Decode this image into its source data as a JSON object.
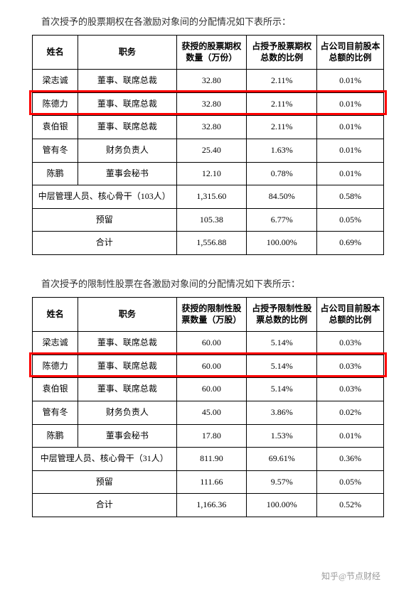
{
  "table1": {
    "caption": "首次授予的股票期权在各激励对象间的分配情况如下表所示：",
    "headers": [
      "姓名",
      "职务",
      "获授的股票期权数量（万份）",
      "占授予股票期权总数的比例",
      "占公司目前股本总额的比例"
    ],
    "rows": [
      [
        "梁志诚",
        "董事、联席总裁",
        "32.80",
        "2.11%",
        "0.01%"
      ],
      [
        "陈德力",
        "董事、联席总裁",
        "32.80",
        "2.11%",
        "0.01%"
      ],
      [
        "袁伯银",
        "董事、联席总裁",
        "32.80",
        "2.11%",
        "0.01%"
      ],
      [
        "管有冬",
        "财务负责人",
        "25.40",
        "1.63%",
        "0.01%"
      ],
      [
        "陈鹏",
        "董事会秘书",
        "12.10",
        "0.78%",
        "0.01%"
      ]
    ],
    "summary_rows": [
      [
        "中层管理人员、核心骨干（103人）",
        "1,315.60",
        "84.50%",
        "0.58%"
      ],
      [
        "预留",
        "105.38",
        "6.77%",
        "0.05%"
      ],
      [
        "合计",
        "1,556.88",
        "100.00%",
        "0.69%"
      ]
    ],
    "highlight_row_index": 1
  },
  "table2": {
    "caption": "首次授予的限制性股票在各激励对象间的分配情况如下表所示：",
    "headers": [
      "姓名",
      "职务",
      "获授的限制性股票数量（万股）",
      "占授予限制性股票总数的比例",
      "占公司目前股本总额的比例"
    ],
    "rows": [
      [
        "梁志诚",
        "董事、联席总裁",
        "60.00",
        "5.14%",
        "0.03%"
      ],
      [
        "陈德力",
        "董事、联席总裁",
        "60.00",
        "5.14%",
        "0.03%"
      ],
      [
        "袁伯银",
        "董事、联席总裁",
        "60.00",
        "5.14%",
        "0.03%"
      ],
      [
        "管有冬",
        "财务负责人",
        "45.00",
        "3.86%",
        "0.02%"
      ],
      [
        "陈鹏",
        "董事会秘书",
        "17.80",
        "1.53%",
        "0.01%"
      ]
    ],
    "summary_rows": [
      [
        "中层管理人员、核心骨干（31人）",
        "811.90",
        "69.61%",
        "0.36%"
      ],
      [
        "预留",
        "111.66",
        "9.57%",
        "0.05%"
      ],
      [
        "合计",
        "1,166.36",
        "100.00%",
        "0.52%"
      ]
    ],
    "highlight_row_index": 1
  },
  "watermark": "知乎@节点财经"
}
